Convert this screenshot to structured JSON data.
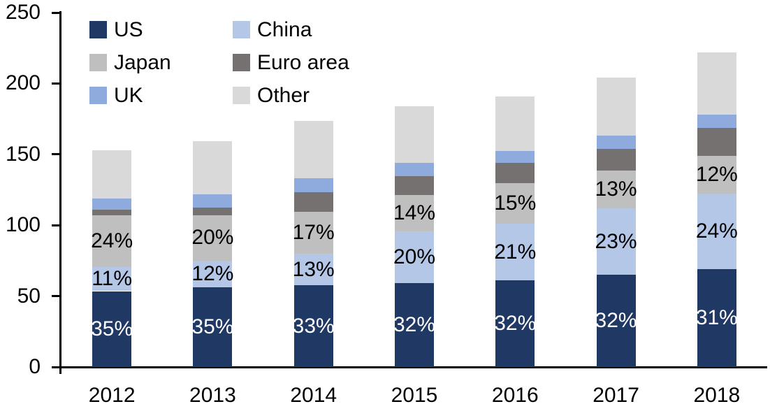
{
  "chart_data": {
    "type": "bar",
    "stacked": true,
    "title": "",
    "xlabel": "",
    "ylabel": "",
    "background_color": "#FFFFFF",
    "axis_color": "#000000",
    "text_color": "#000000",
    "categories": [
      "2012",
      "2013",
      "2014",
      "2015",
      "2016",
      "2017",
      "2018"
    ],
    "series": [
      {
        "name": "US",
        "color": "#1F3864",
        "values": [
          53.5,
          56,
          57.5,
          59,
          61,
          65,
          69
        ],
        "percent_labels": [
          "35%",
          "35%",
          "33%",
          "32%",
          "32%",
          "32%",
          "31%"
        ],
        "label_color": "#FFFFFF"
      },
      {
        "name": "China",
        "color": "#B4C7E7",
        "values": [
          17,
          19,
          22.5,
          36.5,
          40,
          47,
          53.5
        ],
        "percent_labels": [
          "11%",
          "12%",
          "13%",
          "20%",
          "21%",
          "23%",
          "24%"
        ],
        "label_color": "#000000"
      },
      {
        "name": "Japan",
        "color": "#BFBFBF",
        "values": [
          36.5,
          32,
          29.5,
          26,
          28.5,
          26.5,
          26.5
        ],
        "percent_labels": [
          "24%",
          "20%",
          "17%",
          "14%",
          "15%",
          "13%",
          "12%"
        ],
        "label_color": "#000000"
      },
      {
        "name": "Euro area",
        "color": "#767171",
        "values": [
          4,
          5.5,
          14,
          13,
          14.5,
          15.5,
          19.5
        ],
        "percent_labels": null,
        "label_color": "#000000"
      },
      {
        "name": "UK",
        "color": "#8FAADC",
        "values": [
          8,
          9.5,
          9.5,
          9.5,
          8.5,
          9,
          9.5
        ],
        "percent_labels": null,
        "label_color": "#000000"
      },
      {
        "name": "Other",
        "color": "#D9D9D9",
        "values": [
          34,
          37.5,
          40.5,
          40,
          38.5,
          41,
          44
        ],
        "percent_labels": null,
        "label_color": "#000000"
      }
    ],
    "bar_totals": [
      153,
      159.5,
      173.5,
      184,
      191,
      204,
      222
    ],
    "y_axis": {
      "min": 0,
      "max": 250,
      "ticks": [
        0,
        50,
        100,
        150,
        200,
        250
      ],
      "tick_labels": [
        "0",
        "50",
        "100",
        "150",
        "200",
        "250"
      ]
    },
    "grid": false,
    "legend": {
      "position": "top-left",
      "columns": 2,
      "entries": [
        "US",
        "China",
        "Japan",
        "Euro area",
        "UK",
        "Other"
      ]
    }
  }
}
